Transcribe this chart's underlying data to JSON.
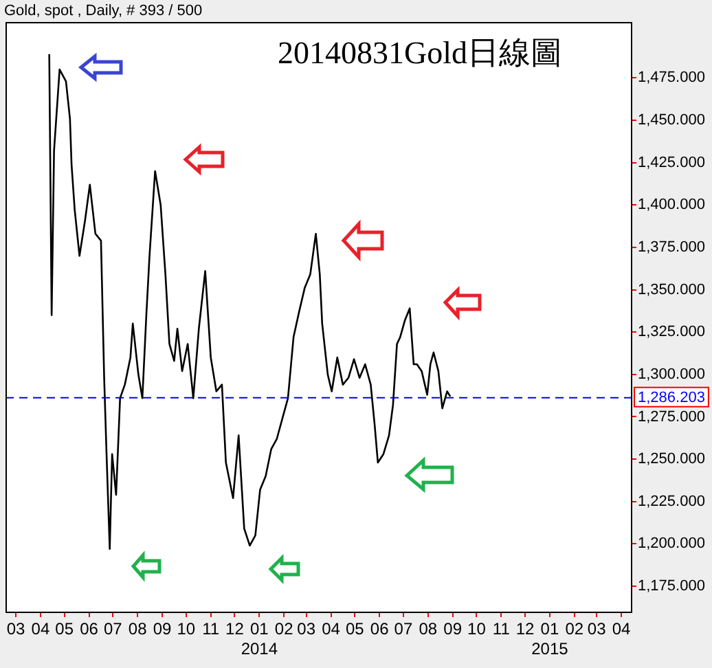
{
  "chart_data": {
    "type": "line",
    "subtitle": "Gold, spot , Daily, # 393 / 500",
    "title": "20140831Gold日線圖",
    "x": [
      "2013-04-12",
      "2013-04-15",
      "2013-04-18",
      "2013-04-25",
      "2013-05-03",
      "2013-05-08",
      "2013-05-10",
      "2013-05-14",
      "2013-05-20",
      "2013-05-27",
      "2013-06-02",
      "2013-06-09",
      "2013-06-16",
      "2013-06-20",
      "2013-06-23",
      "2013-06-27",
      "2013-06-30",
      "2013-07-05",
      "2013-07-10",
      "2013-07-16",
      "2013-07-23",
      "2013-07-26",
      "2013-08-02",
      "2013-08-07",
      "2013-08-12",
      "2013-08-16",
      "2013-08-23",
      "2013-08-30",
      "2013-09-05",
      "2013-09-10",
      "2013-09-16",
      "2013-09-20",
      "2013-09-26",
      "2013-10-03",
      "2013-10-10",
      "2013-10-17",
      "2013-10-25",
      "2013-11-01",
      "2013-11-08",
      "2013-11-15",
      "2013-11-20",
      "2013-11-29",
      "2013-12-06",
      "2013-12-13",
      "2013-12-20",
      "2013-12-27",
      "2014-01-02",
      "2014-01-09",
      "2014-01-16",
      "2014-01-23",
      "2014-01-30",
      "2014-02-06",
      "2014-02-13",
      "2014-02-20",
      "2014-02-27",
      "2014-03-06",
      "2014-03-13",
      "2014-03-18",
      "2014-03-21",
      "2014-03-28",
      "2014-04-02",
      "2014-04-09",
      "2014-04-16",
      "2014-04-23",
      "2014-04-30",
      "2014-05-07",
      "2014-05-14",
      "2014-05-21",
      "2014-05-26",
      "2014-05-30",
      "2014-06-06",
      "2014-06-13",
      "2014-06-18",
      "2014-06-23",
      "2014-06-27",
      "2014-07-03",
      "2014-07-09",
      "2014-07-14",
      "2014-07-18",
      "2014-07-24",
      "2014-07-31",
      "2014-08-04",
      "2014-08-08",
      "2014-08-14",
      "2014-08-19",
      "2014-08-25",
      "2014-08-29"
    ],
    "series": [
      {
        "color": "#000000",
        "values": [
          1489,
          1335,
          1432,
          1480,
          1473,
          1451,
          1424,
          1397,
          1370,
          1391,
          1412,
          1383,
          1379,
          1298,
          1253,
          1197,
          1253,
          1229,
          1286,
          1294,
          1310,
          1330,
          1300,
          1286,
          1335,
          1370,
          1420,
          1400,
          1359,
          1318,
          1308,
          1327,
          1302,
          1318,
          1286,
          1327,
          1361,
          1310,
          1290,
          1294,
          1248,
          1227,
          1264,
          1209,
          1199,
          1205,
          1232,
          1240,
          1256,
          1262,
          1274,
          1286,
          1322,
          1337,
          1351,
          1359,
          1383,
          1359,
          1330,
          1300,
          1290,
          1310,
          1294,
          1298,
          1309,
          1298,
          1306,
          1294,
          1270,
          1248,
          1253,
          1264,
          1282,
          1318,
          1322,
          1332,
          1339,
          1306,
          1306,
          1302,
          1288,
          1306,
          1313,
          1302,
          1280,
          1290,
          1287
        ]
      }
    ],
    "xlim": [
      "2013-02-16",
      "2015-04-13"
    ],
    "xticks": [
      {
        "value": "2013-03-01",
        "label": "03"
      },
      {
        "value": "2013-04-01",
        "label": "04"
      },
      {
        "value": "2013-05-01",
        "label": "05"
      },
      {
        "value": "2013-06-01",
        "label": "06"
      },
      {
        "value": "2013-07-01",
        "label": "07"
      },
      {
        "value": "2013-08-01",
        "label": "08"
      },
      {
        "value": "2013-09-01",
        "label": "09"
      },
      {
        "value": "2013-10-01",
        "label": "10"
      },
      {
        "value": "2013-11-01",
        "label": "11"
      },
      {
        "value": "2013-12-01",
        "label": "12"
      },
      {
        "value": "2014-01-01",
        "label": "01\n2014"
      },
      {
        "value": "2014-02-01",
        "label": "02"
      },
      {
        "value": "2014-03-01",
        "label": "03"
      },
      {
        "value": "2014-04-01",
        "label": "04"
      },
      {
        "value": "2014-05-01",
        "label": "05"
      },
      {
        "value": "2014-06-01",
        "label": "06"
      },
      {
        "value": "2014-07-01",
        "label": "07"
      },
      {
        "value": "2014-08-01",
        "label": "08"
      },
      {
        "value": "2014-09-01",
        "label": "09"
      },
      {
        "value": "2014-10-01",
        "label": "10"
      },
      {
        "value": "2014-11-01",
        "label": "11"
      },
      {
        "value": "2014-12-01",
        "label": "12"
      },
      {
        "value": "2015-01-01",
        "label": "01\n2015"
      },
      {
        "value": "2015-02-01",
        "label": "02"
      },
      {
        "value": "2015-03-01",
        "label": "03"
      },
      {
        "value": "2015-04-01",
        "label": "04"
      }
    ],
    "ylim": [
      1160,
      1508
    ],
    "yticks": [
      {
        "value": 1175,
        "label": "1,175.000"
      },
      {
        "value": 1200,
        "label": "1,200.000"
      },
      {
        "value": 1225,
        "label": "1,225.000"
      },
      {
        "value": 1250,
        "label": "1,250.000"
      },
      {
        "value": 1275,
        "label": "1,275.000"
      },
      {
        "value": 1300,
        "label": "1,300.000"
      },
      {
        "value": 1325,
        "label": "1,325.000"
      },
      {
        "value": 1350,
        "label": "1,350.000"
      },
      {
        "value": 1375,
        "label": "1,375.000"
      },
      {
        "value": 1400,
        "label": "1,400.000"
      },
      {
        "value": 1425,
        "label": "1,425.000"
      },
      {
        "value": 1450,
        "label": "1,450.000"
      },
      {
        "value": 1475,
        "label": "1,475.000"
      }
    ],
    "ref_lines": [
      {
        "axis": "y",
        "value": 1286.203,
        "label": "1,286.203",
        "color": "#0000ff",
        "line_style": "dashed"
      }
    ],
    "grid": false,
    "legend": false
  }
}
